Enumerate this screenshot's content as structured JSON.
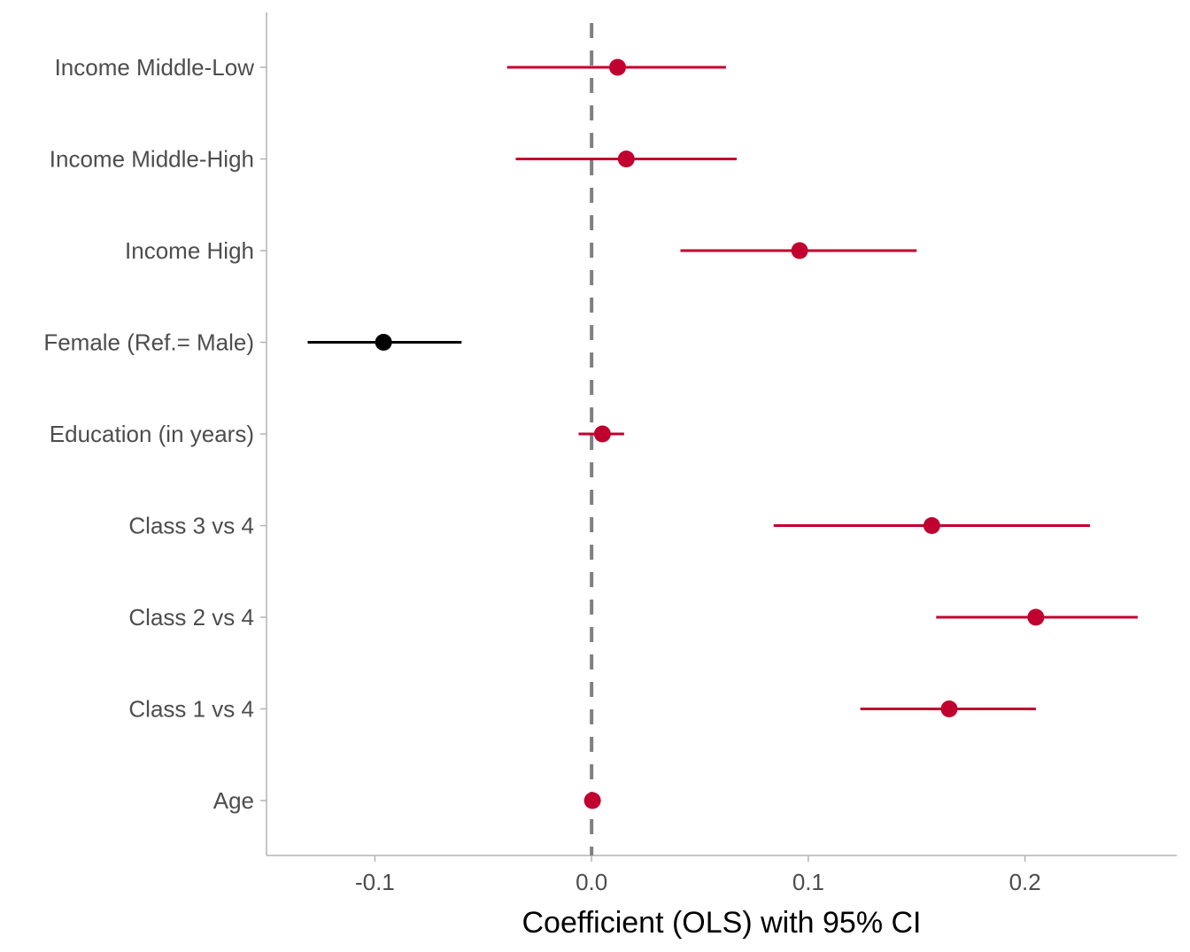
{
  "chart_data": {
    "type": "scatter",
    "subtype": "coefficient-plot",
    "title": "",
    "xlabel": "Coefficient (OLS) with 95% CI",
    "ylabel": "",
    "xlim": [
      -0.15,
      0.27
    ],
    "xticks": [
      -0.1,
      0.0,
      0.1,
      0.2
    ],
    "xtick_labels": [
      "-0.1",
      "0.0",
      "0.1",
      "0.2"
    ],
    "reference_line": {
      "x": 0.0,
      "style": "dashed",
      "color": "#808080"
    },
    "grid": false,
    "legend": "none",
    "colors": {
      "significant_positive": "#C0002F",
      "significant_negative": "#000000"
    },
    "terms": [
      {
        "label": "Income Middle-Low",
        "estimate": 0.012,
        "ci_low": -0.039,
        "ci_high": 0.062,
        "color": "#C0002F"
      },
      {
        "label": "Income Middle-High",
        "estimate": 0.016,
        "ci_low": -0.035,
        "ci_high": 0.067,
        "color": "#C0002F"
      },
      {
        "label": "Income High",
        "estimate": 0.096,
        "ci_low": 0.041,
        "ci_high": 0.15,
        "color": "#C0002F"
      },
      {
        "label": "Female (Ref.= Male)",
        "estimate": -0.096,
        "ci_low": -0.131,
        "ci_high": -0.06,
        "color": "#000000"
      },
      {
        "label": "Education (in years)",
        "estimate": 0.005,
        "ci_low": -0.006,
        "ci_high": 0.015,
        "color": "#C0002F"
      },
      {
        "label": "Class 3 vs 4",
        "estimate": 0.157,
        "ci_low": 0.084,
        "ci_high": 0.23,
        "color": "#C0002F"
      },
      {
        "label": "Class 2 vs 4",
        "estimate": 0.205,
        "ci_low": 0.159,
        "ci_high": 0.252,
        "color": "#C0002F"
      },
      {
        "label": "Class 1 vs 4",
        "estimate": 0.165,
        "ci_low": 0.124,
        "ci_high": 0.205,
        "color": "#C0002F"
      },
      {
        "label": "Age",
        "estimate": 0.0004,
        "ci_low": -0.0005,
        "ci_high": 0.0013,
        "color": "#C0002F"
      }
    ]
  }
}
